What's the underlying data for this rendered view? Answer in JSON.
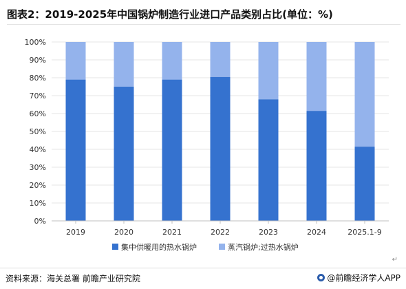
{
  "header": {
    "title": "图表2：2019-2025年中国锅炉制造行业进口产品类别占比(单位：%)"
  },
  "footer": {
    "source": "资料来源：海关总署 前瞻产业研究院",
    "app": "@前瞻经济学人APP",
    "return_mark": "↵"
  },
  "colors": {
    "series1": "#3572cf",
    "series2": "#94b3ec",
    "grid": "#e6e6e6",
    "axis": "#bfbfbf",
    "tick_text": "#333333"
  },
  "chart_data": {
    "type": "bar",
    "stacked": true,
    "categories": [
      "2019",
      "2020",
      "2021",
      "2022",
      "2023",
      "2024",
      "2025.1-9"
    ],
    "series": [
      {
        "name": "集中供暖用的热水锅炉",
        "values": [
          79,
          75,
          79,
          80.5,
          68,
          61.5,
          41.5
        ]
      },
      {
        "name": "蒸汽锅炉;过热水锅炉",
        "values": [
          21,
          25,
          21,
          19.5,
          32,
          38.5,
          58.5
        ]
      }
    ],
    "y_ticks": [
      "0%",
      "10%",
      "20%",
      "30%",
      "40%",
      "50%",
      "60%",
      "70%",
      "80%",
      "90%",
      "100%"
    ],
    "ylim": [
      0,
      100
    ],
    "grid": true,
    "legend_position": "bottom"
  }
}
